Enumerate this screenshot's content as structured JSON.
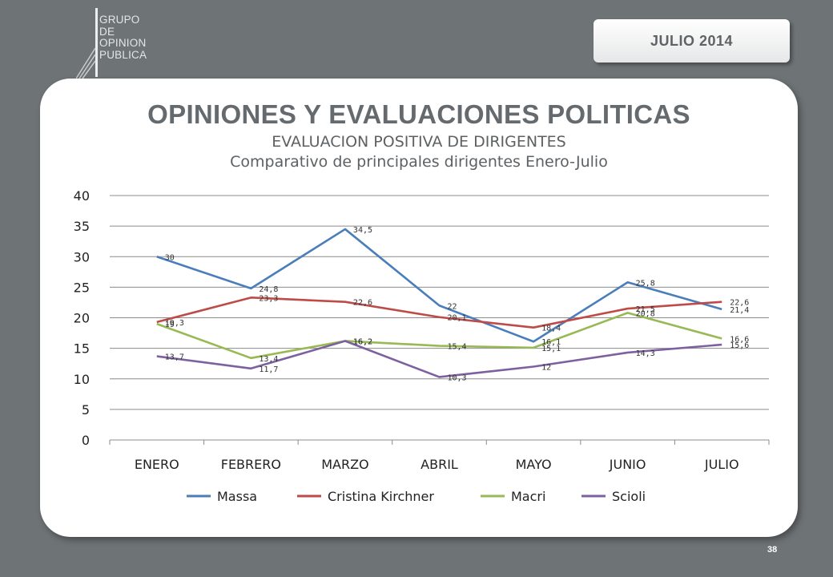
{
  "header": {
    "logo_lines": [
      "GRUPO",
      "DE",
      "OPINION",
      "PUBLICA"
    ],
    "date_badge": "JULIO  2014"
  },
  "slide": {
    "title": "OPINIONES Y EVALUACIONES POLITICAS",
    "page_number": "38"
  },
  "chart_data": {
    "type": "line",
    "title": "EVALUACION POSITIVA DE DIRIGENTES",
    "subtitle": "Comparativo de principales dirigentes Enero-Julio",
    "categories": [
      "ENERO",
      "FEBRERO",
      "MARZO",
      "ABRIL",
      "MAYO",
      "JUNIO",
      "JULIO"
    ],
    "ylim": [
      0,
      40
    ],
    "yticks": [
      0,
      5,
      10,
      15,
      20,
      25,
      30,
      35,
      40
    ],
    "grid": true,
    "legend_position": "bottom",
    "series": [
      {
        "name": "Massa",
        "color": "#4a7ebb",
        "values": [
          30,
          24.8,
          34.5,
          22,
          16.1,
          25.8,
          21.4
        ],
        "labels": [
          "30",
          "24,8",
          "34,5",
          "22",
          "16,1",
          "25,8",
          "21,4"
        ]
      },
      {
        "name": "Cristina Kirchner",
        "color": "#be4b48",
        "values": [
          19.3,
          23.3,
          22.6,
          20.1,
          18.4,
          21.5,
          22.6
        ],
        "labels": [
          "19,3",
          "23,3",
          "22,6",
          "20,1",
          "18,4",
          "21,5",
          "22,6"
        ]
      },
      {
        "name": "Macri",
        "color": "#98b954",
        "values": [
          19,
          13.4,
          16.2,
          15.4,
          15.1,
          20.8,
          16.6
        ],
        "labels": [
          "19",
          "13,4",
          "16,2",
          "15,4",
          "15,1",
          "20,8",
          "16,6"
        ]
      },
      {
        "name": "Scioli",
        "color": "#7d60a0",
        "values": [
          13.7,
          11.7,
          16.2,
          10.3,
          12,
          14.3,
          15.6
        ],
        "labels": [
          "13,7",
          "11,7",
          "16,2",
          "10,3",
          "12",
          "14,3",
          "15,6"
        ]
      }
    ]
  }
}
